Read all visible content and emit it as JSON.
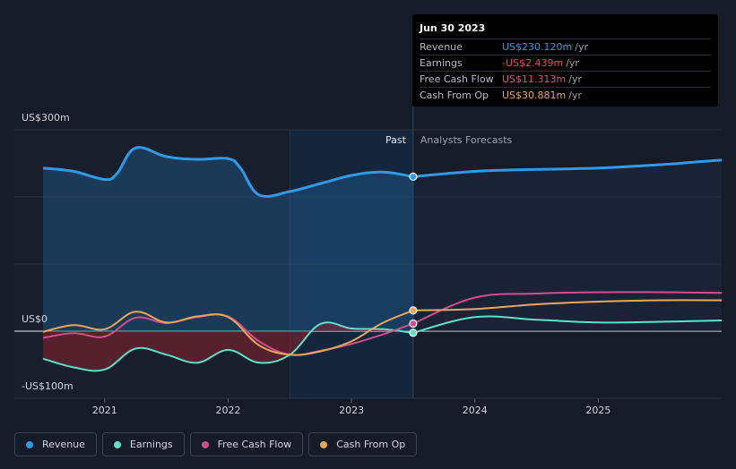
{
  "tooltip": {
    "date": "Jun 30 2023",
    "rows": [
      {
        "label": "Revenue",
        "value": "US$230.120m",
        "unit": "/yr",
        "color": "#2f9ae8"
      },
      {
        "label": "Earnings",
        "value": "-US$2.439m",
        "unit": "/yr",
        "color": "#f04a5a"
      },
      {
        "label": "Free Cash Flow",
        "value": "US$11.313m",
        "unit": "/yr",
        "color": "#d9508e"
      },
      {
        "label": "Cash From Op",
        "value": "US$30.881m",
        "unit": "/yr",
        "color": "#e8a75a"
      }
    ]
  },
  "sections": {
    "past": "Past",
    "forecast": "Analysts Forecasts"
  },
  "legend": [
    {
      "label": "Revenue",
      "color": "#2f9ae8"
    },
    {
      "label": "Earnings",
      "color": "#5fe0c8"
    },
    {
      "label": "Free Cash Flow",
      "color": "#cf4f8e"
    },
    {
      "label": "Cash From Op",
      "color": "#e8a75a"
    }
  ],
  "chart_data": {
    "type": "line",
    "y_tick_labels": [
      "US$300m",
      "US$0",
      "-US$100m"
    ],
    "ylim": [
      -100,
      300
    ],
    "xlim": [
      2020.5,
      2026.0
    ],
    "x_tick_labels": [
      "2021",
      "2022",
      "2023",
      "2024",
      "2025"
    ],
    "x_ticks": [
      2021,
      2022,
      2023,
      2024,
      2025
    ],
    "past_end": 2023.5,
    "shaded_region_start": 2022.5,
    "series": [
      {
        "name": "Revenue",
        "color": "#2f9ae8",
        "points": [
          [
            2020.5,
            243
          ],
          [
            2020.75,
            238
          ],
          [
            2021.0,
            226
          ],
          [
            2021.1,
            235
          ],
          [
            2021.25,
            273
          ],
          [
            2021.5,
            260
          ],
          [
            2021.75,
            256
          ],
          [
            2022.0,
            257
          ],
          [
            2022.1,
            243
          ],
          [
            2022.25,
            203
          ],
          [
            2022.5,
            208
          ],
          [
            2022.75,
            220
          ],
          [
            2023.0,
            232
          ],
          [
            2023.25,
            237
          ],
          [
            2023.5,
            230.12
          ],
          [
            2024.0,
            238
          ],
          [
            2024.5,
            241
          ],
          [
            2025.0,
            243
          ],
          [
            2025.5,
            248
          ],
          [
            2026.0,
            255
          ]
        ]
      },
      {
        "name": "Earnings",
        "color": "#5fe0c8",
        "points": [
          [
            2020.5,
            -41
          ],
          [
            2020.75,
            -54
          ],
          [
            2021.0,
            -57
          ],
          [
            2021.25,
            -26
          ],
          [
            2021.5,
            -35
          ],
          [
            2021.75,
            -47
          ],
          [
            2022.0,
            -28
          ],
          [
            2022.25,
            -47
          ],
          [
            2022.5,
            -35
          ],
          [
            2022.75,
            11
          ],
          [
            2023.0,
            4
          ],
          [
            2023.25,
            3
          ],
          [
            2023.5,
            -2.439
          ],
          [
            2024.0,
            21
          ],
          [
            2024.5,
            17
          ],
          [
            2025.0,
            13
          ],
          [
            2025.5,
            14
          ],
          [
            2026.0,
            16
          ]
        ]
      },
      {
        "name": "Free Cash Flow",
        "color": "#cf4f8e",
        "points": [
          [
            2020.5,
            -10
          ],
          [
            2020.75,
            -3
          ],
          [
            2021.0,
            -8
          ],
          [
            2021.25,
            20
          ],
          [
            2021.5,
            12
          ],
          [
            2021.75,
            21
          ],
          [
            2022.0,
            22
          ],
          [
            2022.25,
            -15
          ],
          [
            2022.5,
            -35
          ],
          [
            2022.75,
            -29
          ],
          [
            2023.0,
            -19
          ],
          [
            2023.25,
            -5
          ],
          [
            2023.5,
            11.313
          ],
          [
            2024.0,
            50
          ],
          [
            2024.5,
            56
          ],
          [
            2025.0,
            58
          ],
          [
            2025.5,
            58
          ],
          [
            2026.0,
            57
          ]
        ]
      },
      {
        "name": "Cash From Op",
        "color": "#e8a75a",
        "points": [
          [
            2020.5,
            -1
          ],
          [
            2020.75,
            9
          ],
          [
            2021.0,
            3
          ],
          [
            2021.25,
            29
          ],
          [
            2021.5,
            13
          ],
          [
            2021.75,
            22
          ],
          [
            2022.0,
            21
          ],
          [
            2022.25,
            -21
          ],
          [
            2022.5,
            -35
          ],
          [
            2022.75,
            -30
          ],
          [
            2023.0,
            -15
          ],
          [
            2023.25,
            12
          ],
          [
            2023.5,
            30.881
          ],
          [
            2024.0,
            33
          ],
          [
            2024.5,
            40
          ],
          [
            2025.0,
            44
          ],
          [
            2025.5,
            46
          ],
          [
            2026.0,
            46
          ]
        ]
      }
    ]
  }
}
